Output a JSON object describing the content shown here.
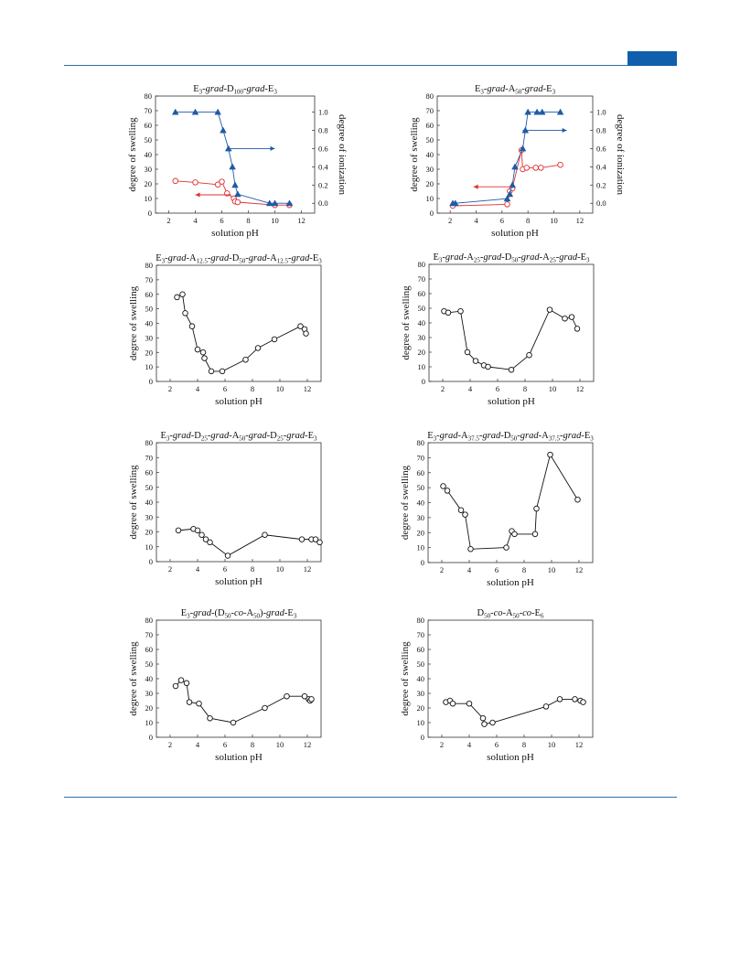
{
  "page": {
    "accent_color": "#0f5fad",
    "rule_color": "#2f6fa8"
  },
  "chart_data": [
    {
      "type": "line",
      "title_parts": [
        [
          "E",
          "n"
        ],
        [
          "3",
          "sub"
        ],
        [
          "-",
          "n"
        ],
        [
          "grad",
          "i"
        ],
        [
          "-D",
          "n"
        ],
        [
          "100",
          "sub"
        ],
        [
          "-",
          "n"
        ],
        [
          "grad",
          "i"
        ],
        [
          "-E",
          "n"
        ],
        [
          "3",
          "sub"
        ]
      ],
      "xlabel": "solution pH",
      "ylabel": "degree of swelling",
      "y2label": "degree of ionization",
      "xlim": [
        1,
        13
      ],
      "ylim": [
        0,
        80
      ],
      "y2lim": [
        -0.108,
        1.176
      ],
      "xticks": [
        2,
        4,
        6,
        8,
        10,
        12
      ],
      "yticks": [
        0,
        10,
        20,
        30,
        40,
        50,
        60,
        70,
        80
      ],
      "y2ticks": [
        0.0,
        0.2,
        0.4,
        0.6,
        0.8,
        1.0
      ],
      "y2ticklabels": [
        "0.0",
        "0.2",
        "0.4",
        "0.6",
        "0.8",
        "1.0"
      ],
      "series": [
        {
          "axis": "left",
          "color": "#e03030",
          "marker": "circle",
          "x": [
            2.5,
            4.0,
            5.7,
            6.0,
            6.4,
            6.9,
            7.0,
            7.2,
            10.0,
            11.1
          ],
          "y": [
            22,
            21,
            19.5,
            21.5,
            13.5,
            10,
            8,
            7.5,
            5.5,
            5.5
          ]
        },
        {
          "axis": "right",
          "color": "#1f5aa6",
          "marker": "triangle",
          "x": [
            2.5,
            4.0,
            5.7,
            6.1,
            6.5,
            6.8,
            7.0,
            7.2,
            9.6,
            10.0,
            11.1
          ],
          "y": [
            1.0,
            1.0,
            1.0,
            0.8,
            0.6,
            0.4,
            0.2,
            0.1,
            0.0,
            0.0,
            0.0
          ]
        }
      ],
      "arrows": [
        {
          "color": "#e03030",
          "x1": 6.7,
          "x2": 4.0,
          "y": 12.5,
          "axis": "left"
        },
        {
          "color": "#1f5aa6",
          "x1": 6.5,
          "x2": 10.0,
          "y": 0.6,
          "axis": "right"
        }
      ]
    },
    {
      "type": "line",
      "title_parts": [
        [
          "E",
          "n"
        ],
        [
          "3",
          "sub"
        ],
        [
          "-",
          "n"
        ],
        [
          "grad",
          "i"
        ],
        [
          "-A",
          "n"
        ],
        [
          "50",
          "sub"
        ],
        [
          "-",
          "n"
        ],
        [
          "grad",
          "i"
        ],
        [
          "-E",
          "n"
        ],
        [
          "3",
          "sub"
        ]
      ],
      "xlabel": "solution pH",
      "ylabel": "degree of swelling",
      "y2label": "degree of ionization",
      "xlim": [
        1,
        13
      ],
      "ylim": [
        0,
        80
      ],
      "y2lim": [
        -0.108,
        1.176
      ],
      "xticks": [
        2,
        4,
        6,
        8,
        10,
        12
      ],
      "yticks": [
        0,
        10,
        20,
        30,
        40,
        50,
        60,
        70,
        80
      ],
      "y2ticks": [
        0.0,
        0.2,
        0.4,
        0.6,
        0.8,
        1.0
      ],
      "y2ticklabels": [
        "0.0",
        "0.2",
        "0.4",
        "0.6",
        "0.8",
        "1.0"
      ],
      "series": [
        {
          "axis": "left",
          "color": "#e03030",
          "marker": "circle",
          "x": [
            2.2,
            6.4,
            6.6,
            6.8,
            7.5,
            7.6,
            7.9,
            8.6,
            9.0,
            10.5
          ],
          "y": [
            5,
            6,
            15,
            17,
            43,
            30,
            31,
            31,
            31,
            33
          ]
        },
        {
          "axis": "right",
          "color": "#1f5aa6",
          "marker": "triangle",
          "x": [
            2.2,
            2.4,
            6.4,
            6.6,
            6.8,
            7.0,
            7.6,
            7.8,
            8.0,
            8.7,
            9.1,
            10.5
          ],
          "y": [
            0.0,
            0.0,
            0.05,
            0.1,
            0.2,
            0.4,
            0.6,
            0.8,
            1.0,
            1.0,
            1.0,
            1.0
          ]
        }
      ],
      "arrows": [
        {
          "color": "#e03030",
          "x1": 6.7,
          "x2": 3.8,
          "y": 18,
          "axis": "left"
        },
        {
          "color": "#1f5aa6",
          "x1": 7.6,
          "x2": 11.0,
          "y": 0.8,
          "axis": "right"
        }
      ]
    },
    {
      "type": "line",
      "title_parts": [
        [
          "E",
          "n"
        ],
        [
          "3",
          "sub"
        ],
        [
          "-",
          "n"
        ],
        [
          "grad",
          "i"
        ],
        [
          "-A",
          "n"
        ],
        [
          "12.5",
          "sub"
        ],
        [
          "-",
          "n"
        ],
        [
          "grad",
          "i"
        ],
        [
          "-D",
          "n"
        ],
        [
          "50",
          "sub"
        ],
        [
          "-",
          "n"
        ],
        [
          "grad",
          "i"
        ],
        [
          "-A",
          "n"
        ],
        [
          "12.5",
          "sub"
        ],
        [
          "-",
          "n"
        ],
        [
          "grad",
          "i"
        ],
        [
          "-E",
          "n"
        ],
        [
          "3",
          "sub"
        ]
      ],
      "xlabel": "solution pH",
      "ylabel": "degree of swelling",
      "xlim": [
        1,
        13
      ],
      "ylim": [
        0,
        80
      ],
      "xticks": [
        2,
        4,
        6,
        8,
        10,
        12
      ],
      "yticks": [
        0,
        10,
        20,
        30,
        40,
        50,
        60,
        70,
        80
      ],
      "series": [
        {
          "axis": "left",
          "color": "#111111",
          "marker": "circle",
          "x": [
            2.5,
            2.9,
            3.1,
            3.6,
            4.0,
            4.4,
            4.5,
            5.0,
            5.8,
            7.5,
            8.4,
            9.6,
            11.5,
            11.8,
            11.9
          ],
          "y": [
            58,
            60,
            47,
            38,
            22,
            20,
            16,
            7,
            7,
            15,
            23,
            29,
            38,
            36,
            33
          ]
        }
      ]
    },
    {
      "type": "line",
      "title_parts": [
        [
          "E",
          "n"
        ],
        [
          "3",
          "sub"
        ],
        [
          "-",
          "n"
        ],
        [
          "grad",
          "i"
        ],
        [
          "-A",
          "n"
        ],
        [
          "25",
          "sub"
        ],
        [
          "-",
          "n"
        ],
        [
          "grad",
          "i"
        ],
        [
          "-D",
          "n"
        ],
        [
          "50",
          "sub"
        ],
        [
          "-",
          "n"
        ],
        [
          "grad",
          "i"
        ],
        [
          "-A",
          "n"
        ],
        [
          "25",
          "sub"
        ],
        [
          "-",
          "n"
        ],
        [
          "grad",
          "i"
        ],
        [
          "-E",
          "n"
        ],
        [
          "3",
          "sub"
        ]
      ],
      "xlabel": "solution pH",
      "ylabel": "degree of swelling",
      "xlim": [
        1,
        13
      ],
      "ylim": [
        0,
        80
      ],
      "xticks": [
        2,
        4,
        6,
        8,
        10,
        12
      ],
      "yticks": [
        0,
        10,
        20,
        30,
        40,
        50,
        60,
        70,
        80
      ],
      "series": [
        {
          "axis": "left",
          "color": "#111111",
          "marker": "circle",
          "x": [
            2.1,
            2.4,
            3.3,
            3.8,
            4.4,
            5.0,
            5.3,
            7.0,
            8.3,
            9.8,
            10.9,
            11.4,
            11.8
          ],
          "y": [
            48,
            47,
            48,
            20,
            14,
            11,
            10,
            8,
            18,
            49,
            43,
            44,
            36
          ]
        }
      ]
    },
    {
      "type": "line",
      "title_parts": [
        [
          "E",
          "n"
        ],
        [
          "3",
          "sub"
        ],
        [
          "-",
          "n"
        ],
        [
          "grad",
          "i"
        ],
        [
          "-D",
          "n"
        ],
        [
          "25",
          "sub"
        ],
        [
          "-",
          "n"
        ],
        [
          "grad",
          "i"
        ],
        [
          "-A",
          "n"
        ],
        [
          "50",
          "sub"
        ],
        [
          "-",
          "n"
        ],
        [
          "grad",
          "i"
        ],
        [
          "-D",
          "n"
        ],
        [
          "25",
          "sub"
        ],
        [
          "-",
          "n"
        ],
        [
          "grad",
          "i"
        ],
        [
          "-E",
          "n"
        ],
        [
          "3",
          "sub"
        ]
      ],
      "xlabel": "solution pH",
      "ylabel": "degree of swelling",
      "xlim": [
        1,
        13
      ],
      "ylim": [
        0,
        80
      ],
      "xticks": [
        2,
        4,
        6,
        8,
        10,
        12
      ],
      "yticks": [
        0,
        10,
        20,
        30,
        40,
        50,
        60,
        70,
        80
      ],
      "series": [
        {
          "axis": "left",
          "color": "#111111",
          "marker": "circle",
          "x": [
            2.6,
            3.7,
            4.0,
            4.3,
            4.6,
            4.9,
            6.2,
            8.9,
            11.6,
            12.3,
            12.6,
            12.9
          ],
          "y": [
            21,
            22,
            21,
            18,
            15,
            13,
            4,
            18,
            15,
            15,
            15,
            13
          ]
        }
      ]
    },
    {
      "type": "line",
      "title_parts": [
        [
          "E",
          "n"
        ],
        [
          "3",
          "sub"
        ],
        [
          "-",
          "n"
        ],
        [
          "grad",
          "i"
        ],
        [
          "-A",
          "n"
        ],
        [
          "37.5",
          "sub"
        ],
        [
          "-",
          "n"
        ],
        [
          "grad",
          "i"
        ],
        [
          "-D",
          "n"
        ],
        [
          "50",
          "sub"
        ],
        [
          "-",
          "n"
        ],
        [
          "grad",
          "i"
        ],
        [
          "-A",
          "n"
        ],
        [
          "37.5",
          "sub"
        ],
        [
          "-",
          "n"
        ],
        [
          "grad",
          "i"
        ],
        [
          "-E",
          "n"
        ],
        [
          "3",
          "sub"
        ]
      ],
      "xlabel": "solution pH",
      "ylabel": "degree of swelling",
      "xlim": [
        1,
        13
      ],
      "ylim": [
        0,
        80
      ],
      "xticks": [
        2,
        4,
        6,
        8,
        10,
        12
      ],
      "yticks": [
        0,
        10,
        20,
        30,
        40,
        50,
        60,
        70,
        80
      ],
      "series": [
        {
          "axis": "left",
          "color": "#111111",
          "marker": "circle",
          "x": [
            2.1,
            2.4,
            3.4,
            3.7,
            4.1,
            6.7,
            7.1,
            7.3,
            8.8,
            8.9,
            9.9,
            11.9
          ],
          "y": [
            51,
            48,
            35,
            32,
            9,
            10,
            21,
            19,
            19,
            36,
            72,
            42
          ]
        }
      ]
    },
    {
      "type": "line",
      "title_parts": [
        [
          "E",
          "n"
        ],
        [
          "3",
          "sub"
        ],
        [
          "-",
          "n"
        ],
        [
          "grad",
          "i"
        ],
        [
          "-(D",
          "n"
        ],
        [
          "50",
          "sub"
        ],
        [
          "-",
          "n"
        ],
        [
          "co",
          "i"
        ],
        [
          "-A",
          "n"
        ],
        [
          "50",
          "sub"
        ],
        [
          ")-",
          "n"
        ],
        [
          "grad",
          "i"
        ],
        [
          "-E",
          "n"
        ],
        [
          "3",
          "sub"
        ]
      ],
      "xlabel": "solution pH",
      "ylabel": "degree of swelling",
      "xlim": [
        1,
        13
      ],
      "ylim": [
        0,
        80
      ],
      "xticks": [
        2,
        4,
        6,
        8,
        10,
        12
      ],
      "yticks": [
        0,
        10,
        20,
        30,
        40,
        50,
        60,
        70,
        80
      ],
      "series": [
        {
          "axis": "left",
          "color": "#111111",
          "marker": "circle",
          "x": [
            2.4,
            2.8,
            3.2,
            3.4,
            4.1,
            4.9,
            6.6,
            8.9,
            10.5,
            11.8,
            12.1,
            12.2,
            12.3
          ],
          "y": [
            35,
            39,
            37,
            24,
            23,
            13,
            10,
            20,
            28,
            28,
            26,
            25,
            26
          ]
        }
      ]
    },
    {
      "type": "line",
      "title_parts": [
        [
          "D",
          "n"
        ],
        [
          "50",
          "sub"
        ],
        [
          "-",
          "n"
        ],
        [
          "co",
          "i"
        ],
        [
          "-A",
          "n"
        ],
        [
          "50",
          "sub"
        ],
        [
          "-",
          "n"
        ],
        [
          "co",
          "i"
        ],
        [
          "-E",
          "n"
        ],
        [
          "6",
          "sub"
        ]
      ],
      "xlabel": "solution pH",
      "ylabel": "degree of swelling",
      "xlim": [
        1,
        13
      ],
      "ylim": [
        0,
        80
      ],
      "xticks": [
        2,
        4,
        6,
        8,
        10,
        12
      ],
      "yticks": [
        0,
        10,
        20,
        30,
        40,
        50,
        60,
        70,
        80
      ],
      "series": [
        {
          "axis": "left",
          "color": "#111111",
          "marker": "circle",
          "x": [
            2.3,
            2.6,
            2.8,
            4.0,
            5.0,
            5.1,
            5.7,
            9.6,
            10.6,
            11.7,
            12.1,
            12.3
          ],
          "y": [
            24,
            25,
            23,
            23,
            13,
            9,
            10,
            21,
            26,
            26,
            25,
            24
          ]
        }
      ]
    }
  ]
}
